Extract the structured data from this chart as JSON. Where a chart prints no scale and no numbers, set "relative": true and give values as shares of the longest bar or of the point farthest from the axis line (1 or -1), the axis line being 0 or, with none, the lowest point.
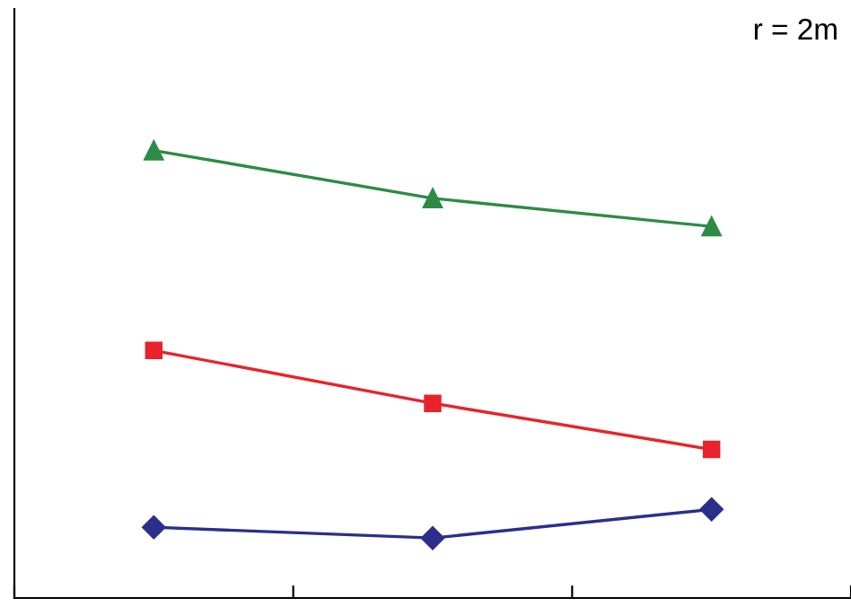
{
  "chart_data": {
    "type": "line",
    "relative": true,
    "categories": [
      null,
      null,
      null
    ],
    "series": [
      {
        "color": "#2b2f8a",
        "marker": "diamond",
        "values": [
          0.158,
          0.134,
          0.198
        ]
      },
      {
        "color": "#e8232b",
        "marker": "square",
        "values": [
          0.553,
          0.435,
          0.332
        ]
      },
      {
        "color": "#2e8b45",
        "marker": "triangle",
        "values": [
          1,
          0.893,
          0.83
        ]
      }
    ],
    "annotations": [
      "r = 2m"
    ],
    "grid": false,
    "legend": false,
    "line_style": "solid"
  }
}
